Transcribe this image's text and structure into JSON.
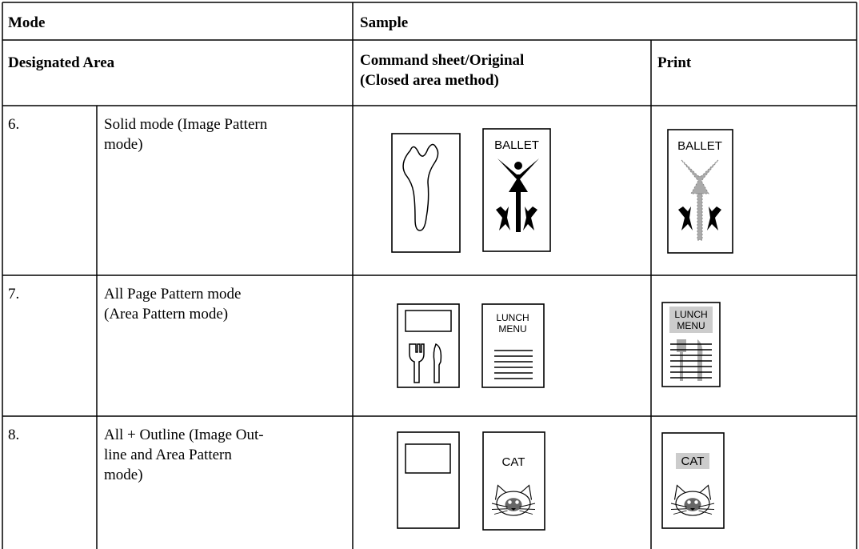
{
  "header": {
    "mode": "Mode",
    "sample": "Sample"
  },
  "subheader": {
    "designated_area": "Designated Area",
    "original": [
      "Command sheet/Original",
      "(Closed area method)"
    ],
    "print": "Print"
  },
  "rows": [
    {
      "number": "6.",
      "mode": [
        "Solid mode (Image Pattern",
        "mode)"
      ],
      "original_label": [
        "BALLET"
      ],
      "print_label": [
        "BALLET"
      ]
    },
    {
      "number": "7.",
      "mode": [
        "All Page Pattern mode",
        "(Area Pattern mode)"
      ],
      "original_label": [
        "LUNCH",
        "MENU"
      ],
      "print_label": [
        "LUNCH",
        "MENU"
      ]
    },
    {
      "number": "8.",
      "mode": [
        "All + Outline (Image Out-",
        "line and Area Pattern",
        "mode)"
      ],
      "original_label": [
        "CAT"
      ],
      "print_label": [
        "CAT"
      ]
    }
  ]
}
